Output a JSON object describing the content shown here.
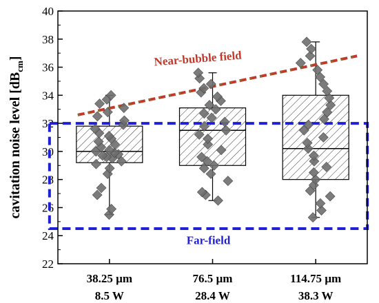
{
  "chart_data": {
    "type": "box",
    "ylabel": {
      "prefix": "cavitation noise level [dB",
      "subscript": "cm",
      "suffix": "]"
    },
    "ylim": [
      22,
      40
    ],
    "yticks": [
      22,
      24,
      26,
      28,
      30,
      32,
      34,
      36,
      38,
      40
    ],
    "categories": [
      {
        "line1": "38.25 µm",
        "line2": "8.5 W"
      },
      {
        "line1": "76.5 µm",
        "line2": "28.4 W"
      },
      {
        "line1": "114.75 µm",
        "line2": "38.3 W"
      }
    ],
    "boxes": [
      {
        "min": 25.5,
        "q1": 29.2,
        "median": 30.0,
        "q3": 31.8,
        "max": 34.0
      },
      {
        "min": 26.5,
        "q1": 29.0,
        "median": 31.5,
        "q3": 33.1,
        "max": 35.6
      },
      {
        "min": 25.3,
        "q1": 28.0,
        "median": 30.2,
        "q3": 34.0,
        "max": 37.8
      }
    ],
    "points": [
      [
        25.5,
        25.9,
        26.9,
        27.4,
        28.4,
        28.8,
        29.1,
        29.3,
        29.5,
        29.6,
        29.7,
        29.8,
        29.9,
        30.0,
        30.1,
        30.3,
        30.5,
        30.7,
        30.9,
        31.1,
        31.3,
        31.6,
        31.9,
        32.2,
        32.5,
        32.8,
        33.1,
        33.4,
        33.7,
        34.0
      ],
      [
        26.5,
        26.9,
        27.1,
        27.9,
        28.4,
        28.8,
        29.0,
        29.3,
        29.6,
        30.1,
        30.5,
        30.9,
        31.2,
        31.5,
        31.8,
        32.1,
        32.4,
        32.7,
        33.0,
        33.3,
        33.6,
        33.9,
        34.2,
        34.5,
        34.8,
        35.2,
        35.6
      ],
      [
        25.3,
        25.8,
        26.3,
        26.8,
        27.2,
        27.6,
        28.0,
        28.5,
        28.9,
        29.3,
        29.7,
        30.2,
        30.6,
        31.0,
        31.5,
        31.9,
        32.3,
        32.8,
        33.3,
        33.8,
        34.3,
        34.8,
        35.3,
        35.8,
        36.3,
        36.8,
        37.3,
        37.8
      ]
    ],
    "near_field": {
      "label": "Near-bubble field",
      "from": 32.6,
      "to": 36.8,
      "color": "#c0392b"
    },
    "far_field": {
      "label": "Far-field",
      "ymin": 24.5,
      "ymax": 32.0,
      "color": "#1f1fd6"
    },
    "marker_color": "#6e6e6e",
    "grid": false
  }
}
